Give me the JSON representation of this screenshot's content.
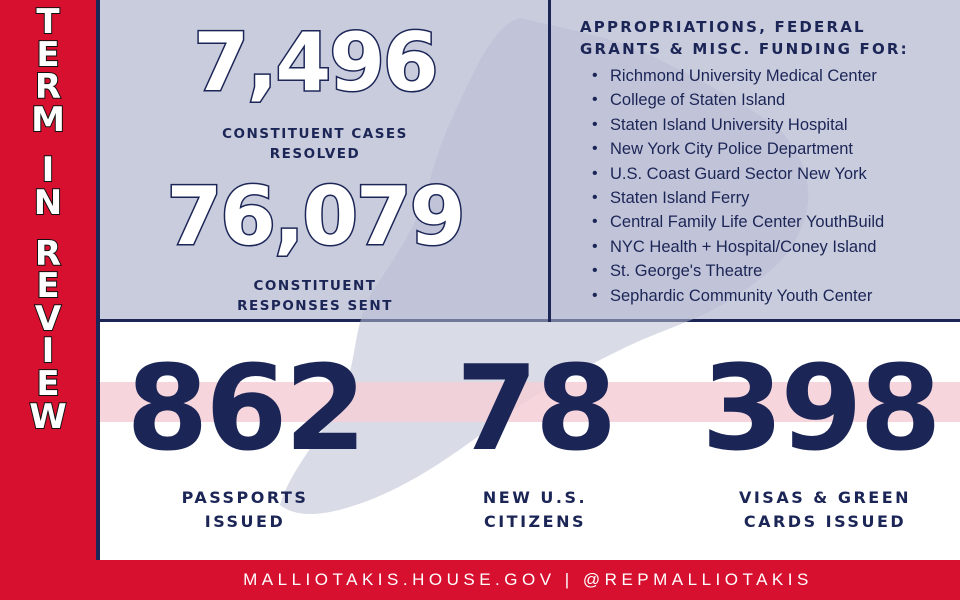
{
  "sidebar": {
    "letters": [
      "T",
      "E",
      "R",
      "M",
      "",
      "I",
      "N",
      "",
      "R",
      "E",
      "V",
      "I",
      "E",
      "W"
    ]
  },
  "cases": {
    "number": "7,496",
    "label_line1": "CONSTITUENT CASES",
    "label_line2": "RESOLVED"
  },
  "responses": {
    "number": "76,079",
    "label_line1": "CONSTITUENT",
    "label_line2": "RESPONSES SENT"
  },
  "appropriations": {
    "title_line1": "APPROPRIATIONS, FEDERAL",
    "title_line2": "GRANTS & MISC. FUNDING FOR:",
    "items": [
      "Richmond University Medical Center",
      "College of Staten Island",
      "Staten Island University Hospital",
      "New York City Police Department",
      "U.S. Coast Guard Sector New York",
      "Staten Island Ferry",
      "Central Family Life Center YouthBuild",
      "NYC Health + Hospital/Coney Island",
      "St. George's Theatre",
      "Sephardic Community Youth Center"
    ]
  },
  "stats": [
    {
      "number": "862",
      "label_line1": "PASSPORTS",
      "label_line2": "ISSUED"
    },
    {
      "number": "78",
      "label_line1": "NEW U.S.",
      "label_line2": "CITIZENS"
    },
    {
      "number": "398",
      "label_line1": "VISAS & GREEN",
      "label_line2": "CARDS ISSUED"
    }
  ],
  "footer": {
    "text": "MALLIOTAKIS.HOUSE.GOV | @REPMALLIOTAKIS"
  },
  "colors": {
    "red": "#d8102f",
    "navy": "#1b2556",
    "lavender": "#c9ccdd",
    "pink": "#f4cfd6",
    "white": "#ffffff"
  }
}
